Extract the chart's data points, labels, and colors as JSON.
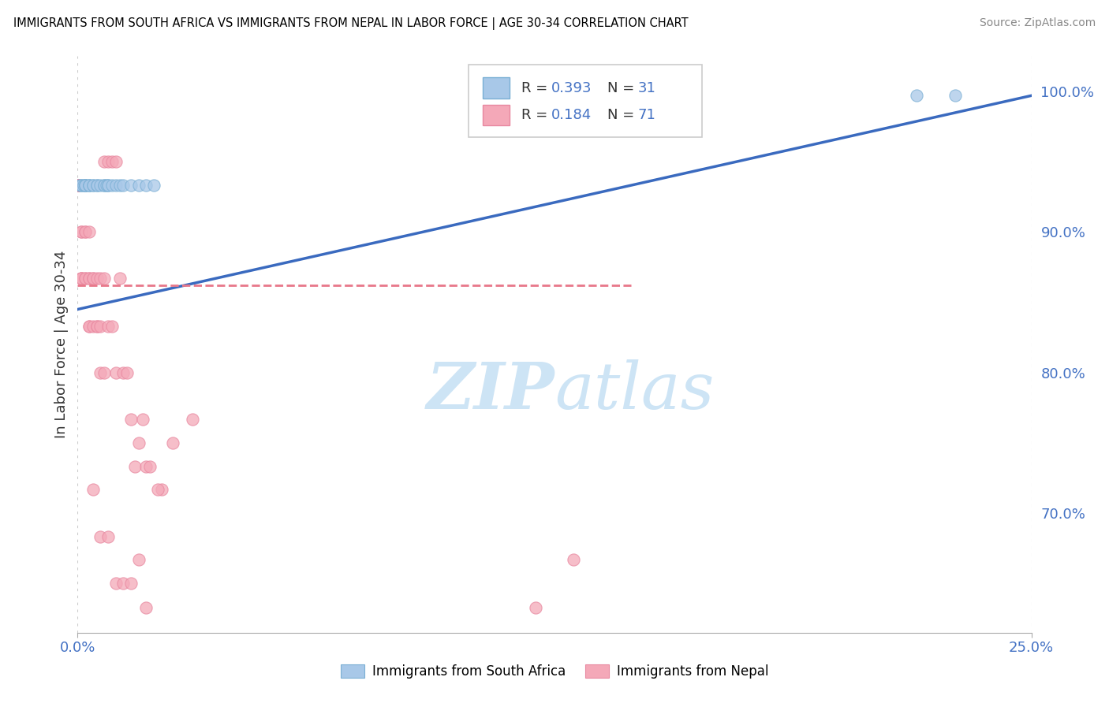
{
  "title": "IMMIGRANTS FROM SOUTH AFRICA VS IMMIGRANTS FROM NEPAL IN LABOR FORCE | AGE 30-34 CORRELATION CHART",
  "source": "Source: ZipAtlas.com",
  "ylabel": "In Labor Force | Age 30-34",
  "x_min": 0.0,
  "x_max": 0.25,
  "y_min": 0.615,
  "y_max": 1.025,
  "color_sa": "#a8c8e8",
  "color_sa_edge": "#7aafd4",
  "color_nepal": "#f4a8b8",
  "color_nepal_edge": "#e888a0",
  "color_line_sa": "#3a6abf",
  "color_line_nepal": "#e8788a",
  "watermark_color": "#cde4f5",
  "sa_points": [
    [
      0.0005,
      0.933
    ],
    [
      0.001,
      0.933
    ],
    [
      0.001,
      0.933
    ],
    [
      0.0015,
      0.933
    ],
    [
      0.002,
      0.933
    ],
    [
      0.002,
      0.933
    ],
    [
      0.002,
      0.933
    ],
    [
      0.002,
      0.933
    ],
    [
      0.003,
      0.933
    ],
    [
      0.003,
      0.933
    ],
    [
      0.003,
      0.933
    ],
    [
      0.004,
      0.933
    ],
    [
      0.004,
      0.933
    ],
    [
      0.005,
      0.933
    ],
    [
      0.005,
      0.933
    ],
    [
      0.006,
      0.933
    ],
    [
      0.007,
      0.933
    ],
    [
      0.007,
      0.933
    ],
    [
      0.0075,
      0.933
    ],
    [
      0.008,
      0.933
    ],
    [
      0.008,
      0.933
    ],
    [
      0.009,
      0.933
    ],
    [
      0.01,
      0.933
    ],
    [
      0.011,
      0.933
    ],
    [
      0.012,
      0.933
    ],
    [
      0.014,
      0.933
    ],
    [
      0.016,
      0.933
    ],
    [
      0.018,
      0.933
    ],
    [
      0.02,
      0.933
    ],
    [
      0.22,
      0.997
    ],
    [
      0.23,
      0.997
    ]
  ],
  "nepal_points": [
    [
      0.0,
      0.933
    ],
    [
      0.0,
      0.933
    ],
    [
      0.0,
      0.933
    ],
    [
      0.0,
      0.933
    ],
    [
      0.0,
      0.933
    ],
    [
      0.0,
      0.933
    ],
    [
      0.0,
      0.933
    ],
    [
      0.0,
      0.933
    ],
    [
      0.0,
      0.933
    ],
    [
      0.0,
      0.933
    ],
    [
      0.0,
      0.933
    ],
    [
      0.0,
      0.933
    ],
    [
      0.0,
      0.933
    ],
    [
      0.0,
      0.933
    ],
    [
      0.0,
      0.933
    ],
    [
      0.0,
      0.933
    ],
    [
      0.001,
      0.9
    ],
    [
      0.001,
      0.9
    ],
    [
      0.001,
      0.867
    ],
    [
      0.001,
      0.867
    ],
    [
      0.001,
      0.867
    ],
    [
      0.002,
      0.9
    ],
    [
      0.002,
      0.9
    ],
    [
      0.002,
      0.867
    ],
    [
      0.002,
      0.867
    ],
    [
      0.003,
      0.9
    ],
    [
      0.003,
      0.867
    ],
    [
      0.003,
      0.867
    ],
    [
      0.003,
      0.833
    ],
    [
      0.003,
      0.833
    ],
    [
      0.004,
      0.867
    ],
    [
      0.004,
      0.867
    ],
    [
      0.004,
      0.833
    ],
    [
      0.005,
      0.867
    ],
    [
      0.005,
      0.833
    ],
    [
      0.005,
      0.833
    ],
    [
      0.006,
      0.867
    ],
    [
      0.006,
      0.833
    ],
    [
      0.006,
      0.8
    ],
    [
      0.007,
      0.867
    ],
    [
      0.007,
      0.8
    ],
    [
      0.008,
      0.833
    ],
    [
      0.009,
      0.833
    ],
    [
      0.01,
      0.8
    ],
    [
      0.011,
      0.867
    ],
    [
      0.012,
      0.8
    ],
    [
      0.013,
      0.8
    ],
    [
      0.014,
      0.767
    ],
    [
      0.015,
      0.733
    ],
    [
      0.016,
      0.75
    ],
    [
      0.017,
      0.767
    ],
    [
      0.018,
      0.733
    ],
    [
      0.019,
      0.733
    ],
    [
      0.022,
      0.717
    ],
    [
      0.004,
      0.717
    ],
    [
      0.006,
      0.683
    ],
    [
      0.008,
      0.683
    ],
    [
      0.01,
      0.65
    ],
    [
      0.012,
      0.65
    ],
    [
      0.014,
      0.65
    ],
    [
      0.016,
      0.667
    ],
    [
      0.018,
      0.633
    ],
    [
      0.021,
      0.717
    ],
    [
      0.12,
      0.633
    ],
    [
      0.13,
      0.667
    ],
    [
      0.03,
      0.767
    ],
    [
      0.025,
      0.75
    ],
    [
      0.007,
      0.95
    ],
    [
      0.008,
      0.95
    ],
    [
      0.009,
      0.95
    ],
    [
      0.01,
      0.95
    ]
  ],
  "sa_line_x": [
    0.0,
    0.25
  ],
  "sa_line_y": [
    0.845,
    0.997
  ],
  "nepal_line_x": [
    0.0,
    0.145
  ],
  "nepal_line_y": [
    0.862,
    0.862
  ]
}
